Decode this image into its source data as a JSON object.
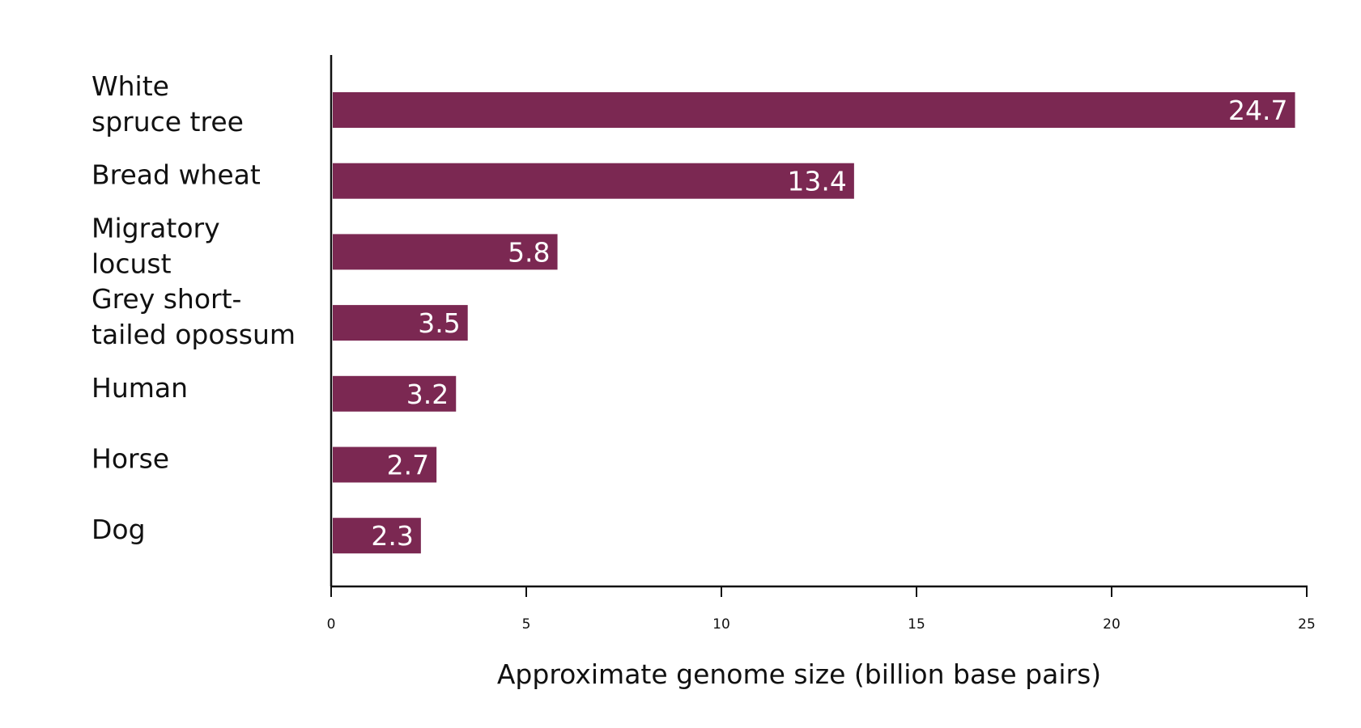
{
  "chart_data": {
    "type": "bar",
    "orientation": "horizontal",
    "categories": [
      [
        "White",
        "spruce tree"
      ],
      [
        "Bread wheat"
      ],
      [
        "Migratory",
        "locust"
      ],
      [
        "Grey short-",
        "tailed opossum"
      ],
      [
        "Human"
      ],
      [
        "Horse"
      ],
      [
        "Dog"
      ]
    ],
    "values": [
      24.7,
      13.4,
      5.8,
      3.5,
      3.2,
      2.7,
      2.3
    ],
    "value_labels": [
      "24.7",
      "13.4",
      "5.8",
      "3.5",
      "3.2",
      "2.7",
      "2.3"
    ],
    "xlabel": "Approximate genome size (billion base pairs)",
    "ylabel": "",
    "title": "",
    "xlim": [
      0,
      25
    ],
    "xticks": [
      0,
      5,
      10,
      15,
      20,
      25
    ],
    "grid": false,
    "legend": "none",
    "bar_color": "#7b2852",
    "value_label_color": "#ffffff",
    "axis_color": "#111111"
  }
}
